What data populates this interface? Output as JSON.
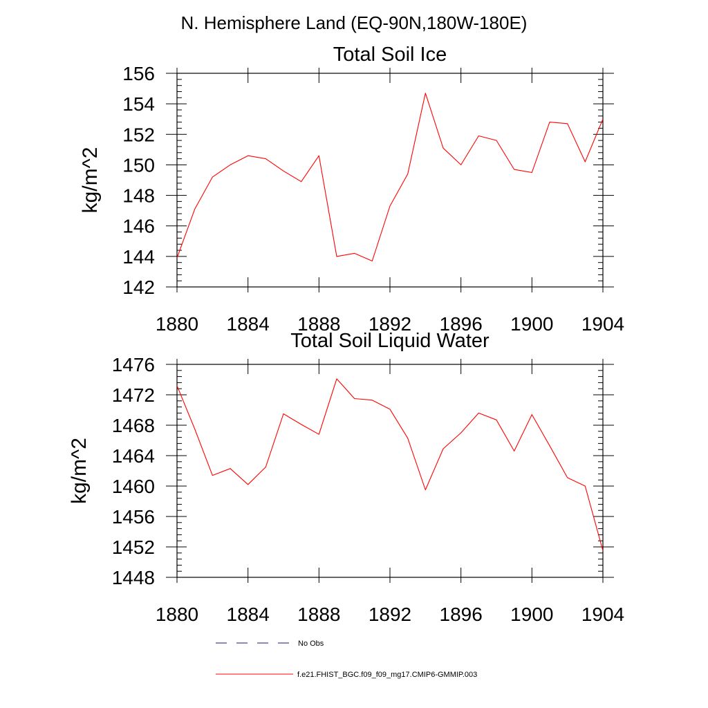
{
  "figure": {
    "title": "N. Hemisphere Land (EQ-90N,180W-180E)"
  },
  "chart_data": [
    {
      "type": "line",
      "title": "Total Soil Ice",
      "ylabel": "kg/m^2",
      "xlabel": "",
      "xlim": [
        1880,
        1904
      ],
      "ylim": [
        142,
        156
      ],
      "x_ticks": [
        1880,
        1884,
        1888,
        1892,
        1896,
        1900,
        1904
      ],
      "y_ticks": [
        142,
        144,
        146,
        148,
        150,
        152,
        154,
        156
      ],
      "x_tick_labels": [
        "1880",
        "1884",
        "1888",
        "1892",
        "1896",
        "1900",
        "1904"
      ],
      "y_tick_labels": [
        "142",
        "144",
        "146",
        "148",
        "150",
        "152",
        "154",
        "156"
      ],
      "series": [
        {
          "name": "f.e21.FHIST_BGC.f09_f09_mg17.CMIP6-GMMIP.003",
          "color": "#ff0000",
          "x": [
            1880,
            1881,
            1882,
            1883,
            1884,
            1885,
            1886,
            1887,
            1888,
            1889,
            1890,
            1891,
            1892,
            1893,
            1894,
            1895,
            1896,
            1897,
            1898,
            1899,
            1900,
            1901,
            1902,
            1903,
            1904
          ],
          "y": [
            143.9,
            147.1,
            149.2,
            150.0,
            150.6,
            150.4,
            149.6,
            148.9,
            150.6,
            144.0,
            144.2,
            143.7,
            147.3,
            149.4,
            154.7,
            151.1,
            150.0,
            151.9,
            151.6,
            149.7,
            149.5,
            152.8,
            152.7,
            150.2,
            153.0
          ]
        }
      ]
    },
    {
      "type": "line",
      "title": "Total Soil Liquid Water",
      "ylabel": "kg/m^2",
      "xlabel": "",
      "xlim": [
        1880,
        1904
      ],
      "ylim": [
        1448,
        1476
      ],
      "x_ticks": [
        1880,
        1884,
        1888,
        1892,
        1896,
        1900,
        1904
      ],
      "y_ticks": [
        1448,
        1452,
        1456,
        1460,
        1464,
        1468,
        1472,
        1476
      ],
      "x_tick_labels": [
        "1880",
        "1884",
        "1888",
        "1892",
        "1896",
        "1900",
        "1904"
      ],
      "y_tick_labels": [
        "1448",
        "1452",
        "1456",
        "1460",
        "1464",
        "1468",
        "1472",
        "1476"
      ],
      "series": [
        {
          "name": "f.e21.FHIST_BGC.f09_f09_mg17.CMIP6-GMMIP.003",
          "color": "#ff0000",
          "x": [
            1880,
            1881,
            1882,
            1883,
            1884,
            1885,
            1886,
            1887,
            1888,
            1889,
            1890,
            1891,
            1892,
            1893,
            1894,
            1895,
            1896,
            1897,
            1898,
            1899,
            1900,
            1901,
            1902,
            1903,
            1904
          ],
          "y": [
            1473.2,
            1467.5,
            1461.4,
            1462.3,
            1460.2,
            1462.5,
            1469.5,
            1468.1,
            1466.8,
            1474.1,
            1471.5,
            1471.3,
            1470.1,
            1466.3,
            1459.5,
            1464.9,
            1467.0,
            1469.6,
            1468.7,
            1464.6,
            1469.4,
            1465.3,
            1461.1,
            1460.0,
            1451.5
          ]
        }
      ]
    }
  ],
  "legend": {
    "items": [
      {
        "label": "No Obs",
        "color": "#1a1a66",
        "style": "dashed"
      },
      {
        "label": "f.e21.FHIST_BGC.f09_f09_mg17.CMIP6-GMMIP.003",
        "color": "#ff0000",
        "style": "solid"
      }
    ]
  }
}
